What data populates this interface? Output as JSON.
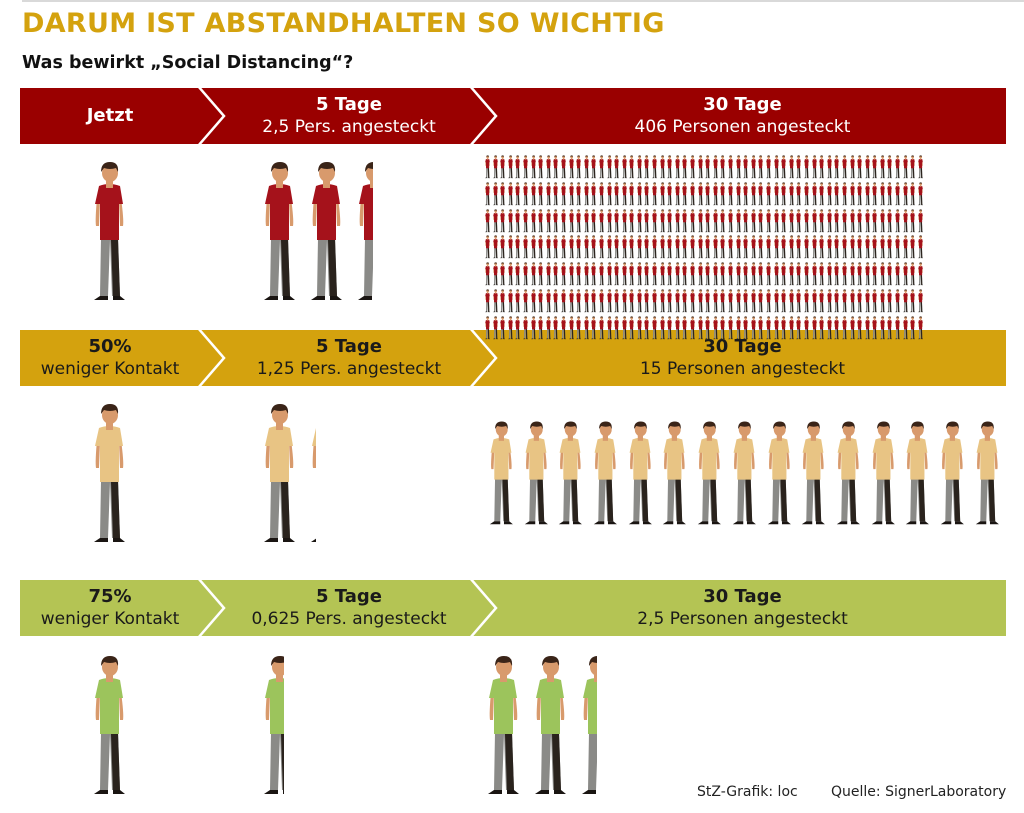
{
  "title": "DARUM IST ABSTANDHALTEN SO WICHTIG",
  "subtitle": "Was bewirkt „Social Distancing“?",
  "colors": {
    "title": "#d4a20e",
    "band_red": "#9a0000",
    "band_gold": "#d4a20e",
    "band_green": "#b4c454",
    "shirt_red": "#a5121b",
    "shirt_beige": "#e8c484",
    "shirt_green": "#9cc45c"
  },
  "rows": [
    {
      "cells": [
        {
          "main": "Jetzt",
          "sub": ""
        },
        {
          "main": "5 Tage",
          "sub": "2,5 Pers. angesteckt"
        },
        {
          "main": "30 Tage",
          "sub": "406 Personen angesteckt"
        }
      ],
      "now_people": 1,
      "day5_people": 2.5,
      "day30_people": 406
    },
    {
      "cells": [
        {
          "main": "50%",
          "sub": "weniger Kontakt"
        },
        {
          "main": "5 Tage",
          "sub": "1,25 Pers. angesteckt"
        },
        {
          "main": "30 Tage",
          "sub": "15 Personen angesteckt"
        }
      ],
      "now_people": 1,
      "day5_people": 1.25,
      "day30_people": 15
    },
    {
      "cells": [
        {
          "main": "75%",
          "sub": "weniger Kontakt"
        },
        {
          "main": "5 Tage",
          "sub": "0,625 Pers. angesteckt"
        },
        {
          "main": "30 Tage",
          "sub": "2,5 Personen angesteckt"
        }
      ],
      "now_people": 1,
      "day5_people": 0.625,
      "day30_people": 2.5
    }
  ],
  "footer": {
    "credit": "StZ-Grafik:  loc",
    "source": "Quelle: SignerLaboratory"
  }
}
